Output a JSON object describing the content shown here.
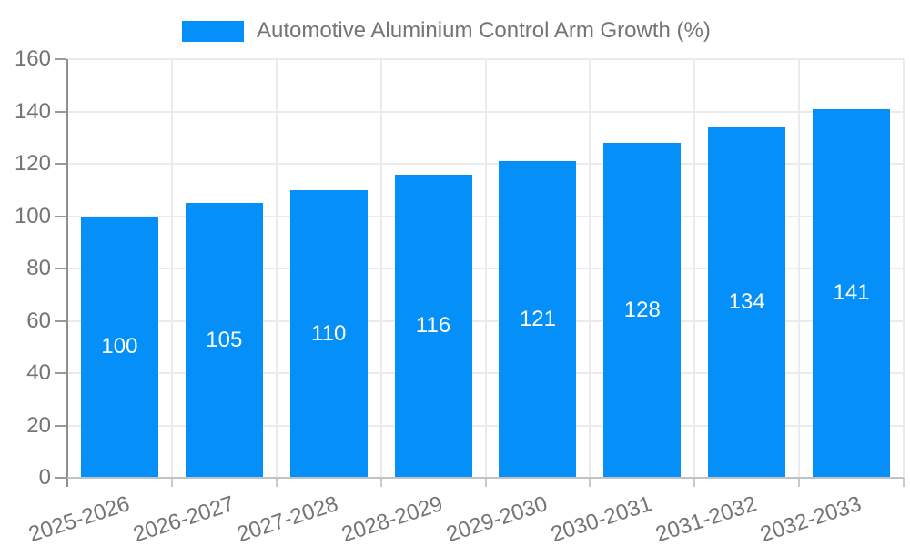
{
  "chart_data": {
    "type": "bar",
    "title": "Automotive Aluminium Control Arm Growth (%)",
    "legend_entries": [
      "Automotive Aluminium Control Arm Growth (%)"
    ],
    "legend_position": "top-center",
    "categories": [
      "2025-2026",
      "2026-2027",
      "2027-2028",
      "2028-2029",
      "2029-2030",
      "2030-2031",
      "2031-2032",
      "2032-2033"
    ],
    "values": [
      100,
      105,
      110,
      116,
      121,
      128,
      134,
      141
    ],
    "value_labels": [
      "100",
      "105",
      "110",
      "116",
      "121",
      "128",
      "134",
      "141"
    ],
    "xlabel": "",
    "ylabel": "",
    "ylim": [
      0,
      160
    ],
    "ytick_step": 20,
    "yticks": [
      0,
      20,
      40,
      60,
      80,
      100,
      120,
      140,
      160
    ],
    "grid": "horizontal and vertical light gray gridlines",
    "bar_color": "#0490F8",
    "value_label_color": "#FFFFFF",
    "axis_text_color": "#747474",
    "background_color": "#FFFFFF"
  }
}
